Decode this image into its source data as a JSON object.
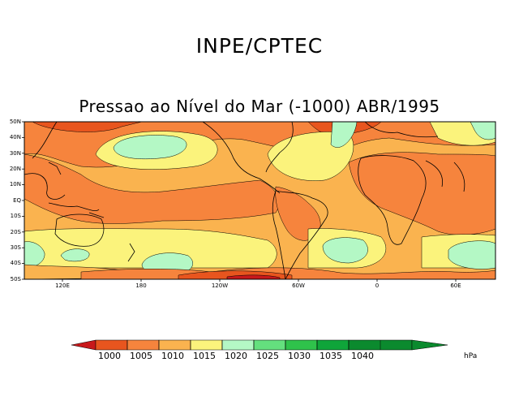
{
  "header": {
    "org": "INPE/CPTEC"
  },
  "map": {
    "title": "Pressao ao Nível do Mar (-1000) ABR/1995",
    "lat_labels": [
      "50N",
      "40N",
      "30N",
      "20N",
      "10N",
      "EQ",
      "10S",
      "20S",
      "30S",
      "40S",
      "50S"
    ],
    "lon_labels": [
      "120E",
      "180",
      "120W",
      "60W",
      "0",
      "60E"
    ],
    "colors": {
      "below_1000": "#c8191b",
      "b1000_1005": "#e8551e",
      "b1005_1010": "#f6843d",
      "b1010_1015": "#fab34f",
      "b1015_1020": "#fbf37c",
      "b1020_1025": "#b4f8c5",
      "land_outline": "#000000"
    }
  },
  "colorbar": {
    "labels": [
      "1000",
      "1005",
      "1010",
      "1015",
      "1020",
      "1025",
      "1030",
      "1035",
      "1040"
    ],
    "colors": [
      "#c8191b",
      "#e8551e",
      "#f6843d",
      "#fab34f",
      "#fbf37c",
      "#b4f8c5",
      "#64e07e",
      "#2fc24b",
      "#0fa53a",
      "#0b8a2e"
    ],
    "unit": "hPa"
  }
}
